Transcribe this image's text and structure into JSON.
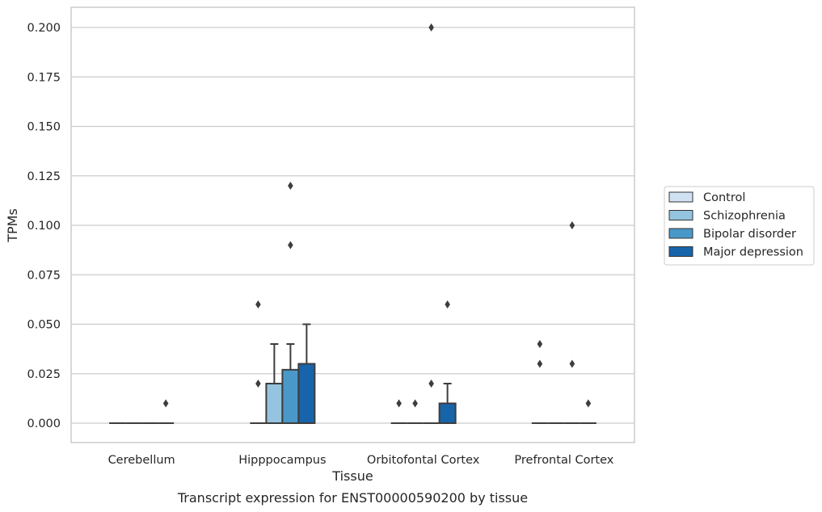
{
  "chart_data": {
    "type": "box",
    "title": "Transcript expression for ENST00000590200 by tissue",
    "xlabel": "Tissue",
    "ylabel": "TPMs",
    "ylim": [
      -0.01,
      0.21
    ],
    "yticks": [
      0.0,
      0.025,
      0.05,
      0.075,
      0.1,
      0.125,
      0.15,
      0.175,
      0.2
    ],
    "ytick_labels": [
      "0.000",
      "0.025",
      "0.050",
      "0.075",
      "0.100",
      "0.125",
      "0.150",
      "0.175",
      "0.200"
    ],
    "grid": true,
    "legend_position": "right",
    "categories": [
      "Cerebellum",
      "Hipppocampus",
      "Orbitofontal Cortex",
      "Prefrontal Cortex"
    ],
    "series": [
      {
        "name": "Control",
        "color": "#d0e1f2",
        "boxes": [
          {
            "q1": 0,
            "median": 0,
            "q3": 0,
            "whisker_low": 0,
            "whisker_high": 0,
            "outliers": []
          },
          {
            "q1": 0,
            "median": 0,
            "q3": 0,
            "whisker_low": 0,
            "whisker_high": 0,
            "outliers": [
              0.02,
              0.06
            ]
          },
          {
            "q1": 0,
            "median": 0,
            "q3": 0,
            "whisker_low": 0,
            "whisker_high": 0,
            "outliers": [
              0.01
            ]
          },
          {
            "q1": 0,
            "median": 0,
            "q3": 0,
            "whisker_low": 0,
            "whisker_high": 0,
            "outliers": [
              0.03,
              0.04
            ]
          }
        ]
      },
      {
        "name": "Schizophrenia",
        "color": "#94c4df",
        "boxes": [
          {
            "q1": 0,
            "median": 0,
            "q3": 0,
            "whisker_low": 0,
            "whisker_high": 0,
            "outliers": []
          },
          {
            "q1": 0,
            "median": 0,
            "q3": 0.02,
            "whisker_low": 0,
            "whisker_high": 0.04,
            "outliers": []
          },
          {
            "q1": 0,
            "median": 0,
            "q3": 0,
            "whisker_low": 0,
            "whisker_high": 0,
            "outliers": [
              0.01
            ]
          },
          {
            "q1": 0,
            "median": 0,
            "q3": 0,
            "whisker_low": 0,
            "whisker_high": 0,
            "outliers": []
          }
        ]
      },
      {
        "name": "Bipolar disorder",
        "color": "#4a98c9",
        "boxes": [
          {
            "q1": 0,
            "median": 0,
            "q3": 0,
            "whisker_low": 0,
            "whisker_high": 0,
            "outliers": []
          },
          {
            "q1": 0,
            "median": 0,
            "q3": 0.027,
            "whisker_low": 0,
            "whisker_high": 0.04,
            "outliers": [
              0.09,
              0.12
            ]
          },
          {
            "q1": 0,
            "median": 0,
            "q3": 0,
            "whisker_low": 0,
            "whisker_high": 0,
            "outliers": [
              0.02,
              0.2
            ]
          },
          {
            "q1": 0,
            "median": 0,
            "q3": 0,
            "whisker_low": 0,
            "whisker_high": 0,
            "outliers": [
              0.03,
              0.1
            ]
          }
        ]
      },
      {
        "name": "Major depression",
        "color": "#1764ab",
        "boxes": [
          {
            "q1": 0,
            "median": 0,
            "q3": 0,
            "whisker_low": 0,
            "whisker_high": 0,
            "outliers": [
              0.01
            ]
          },
          {
            "q1": 0,
            "median": 0,
            "q3": 0.03,
            "whisker_low": 0,
            "whisker_high": 0.05,
            "outliers": []
          },
          {
            "q1": 0,
            "median": 0,
            "q3": 0.01,
            "whisker_low": 0,
            "whisker_high": 0.02,
            "outliers": [
              0.06
            ]
          },
          {
            "q1": 0,
            "median": 0,
            "q3": 0,
            "whisker_low": 0,
            "whisker_high": 0,
            "outliers": [
              0.01
            ]
          }
        ]
      }
    ]
  }
}
